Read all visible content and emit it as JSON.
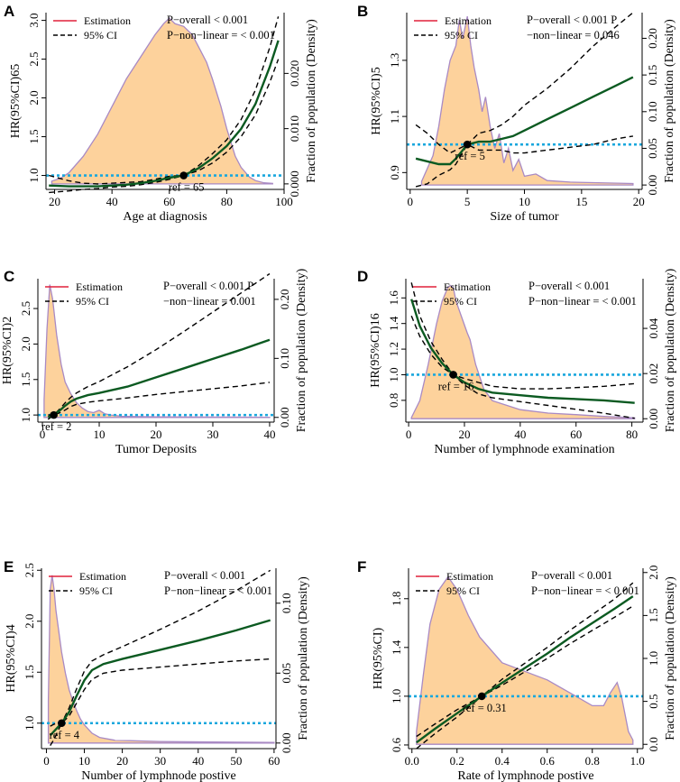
{
  "colors": {
    "density_fill": "#FDD29C",
    "density_stroke": "#A98AC4",
    "estimation_curve": "#0B5A21",
    "estimation_legend": "#E0203A",
    "ci": "#000000",
    "reference": "#1AA7DD",
    "point": "#000000"
  },
  "legend": {
    "estimation": "Estimation",
    "ci": "95% CI"
  },
  "density_axis_label": "Fraction of population (Density)",
  "chart_data": [
    {
      "panel": "A",
      "type": "line",
      "xlabel": "Age at diagnosis",
      "ylabel": "HR(95%CI)65",
      "xlim": [
        17,
        100
      ],
      "xticks": [
        20,
        40,
        60,
        80,
        100
      ],
      "ylim": [
        0.82,
        3.1
      ],
      "yticks": [
        "1.0",
        "1.5",
        "2.0",
        "2.5",
        "3.0"
      ],
      "y2lim": [
        -0.001,
        0.031
      ],
      "y2ticks": [
        "0.000",
        "0.010",
        "0.020"
      ],
      "annot1": "P−overall < 0.001",
      "annot2": "P−non−linear = < 0.001",
      "ref_label": "ref = 65",
      "ref_x": 65,
      "ref_y": 1.0,
      "x": [
        18,
        25,
        30,
        35,
        40,
        45,
        50,
        55,
        60,
        65,
        70,
        75,
        80,
        85,
        90,
        95,
        98
      ],
      "estimate": [
        0.87,
        0.86,
        0.86,
        0.86,
        0.87,
        0.88,
        0.9,
        0.93,
        0.97,
        1.0,
        1.09,
        1.22,
        1.38,
        1.6,
        1.92,
        2.4,
        2.74
      ],
      "ci_lower": [
        0.78,
        0.8,
        0.82,
        0.83,
        0.85,
        0.86,
        0.88,
        0.91,
        0.95,
        1.0,
        1.06,
        1.16,
        1.3,
        1.5,
        1.78,
        2.2,
        2.5
      ],
      "ci_upper": [
        1.0,
        0.93,
        0.9,
        0.89,
        0.9,
        0.91,
        0.92,
        0.95,
        0.99,
        1.0,
        1.12,
        1.28,
        1.46,
        1.72,
        2.1,
        2.65,
        3.05
      ],
      "density_x": [
        19,
        22,
        25,
        30,
        35,
        40,
        45,
        50,
        55,
        58,
        60,
        62,
        65,
        68,
        70,
        73,
        75,
        78,
        80,
        83,
        85,
        88,
        90,
        93,
        96
      ],
      "density": [
        0.0005,
        0.001,
        0.002,
        0.005,
        0.009,
        0.014,
        0.019,
        0.023,
        0.027,
        0.029,
        0.03,
        0.029,
        0.0285,
        0.027,
        0.025,
        0.022,
        0.019,
        0.014,
        0.01,
        0.005,
        0.003,
        0.0012,
        0.0006,
        0.0002,
        0.0001
      ]
    },
    {
      "panel": "B",
      "type": "line",
      "xlabel": "Size of tumor",
      "ylabel": "HR(95%CI)5",
      "xlim": [
        -0.3,
        20.3
      ],
      "xticks": [
        0,
        5,
        10,
        15,
        20
      ],
      "ylim": [
        0.84,
        1.47
      ],
      "yticks": [
        "0.9",
        "1.1",
        "1.3"
      ],
      "y2lim": [
        -0.006,
        0.235
      ],
      "y2ticks": [
        "0.00",
        "0.05",
        "0.10",
        "0.15",
        "0.20"
      ],
      "annot1": "P−overall < 0.001 P",
      "annot2": "−non−linear = 0.046",
      "ref_label": "ref = 5",
      "ref_x": 5,
      "ref_y": 1.0,
      "x": [
        0.5,
        1.5,
        2.5,
        3.5,
        4.0,
        5.0,
        6.0,
        7.0,
        8.0,
        9.0,
        10,
        12,
        14,
        16,
        18,
        19.5
      ],
      "estimate": [
        0.95,
        0.94,
        0.93,
        0.93,
        0.95,
        1.0,
        1.01,
        1.01,
        1.02,
        1.03,
        1.05,
        1.09,
        1.13,
        1.17,
        1.21,
        1.24
      ],
      "ci_lower": [
        0.85,
        0.86,
        0.89,
        0.91,
        0.93,
        1.0,
        0.98,
        0.98,
        0.98,
        0.97,
        0.97,
        0.98,
        0.99,
        1.0,
        1.02,
        1.03
      ],
      "ci_upper": [
        1.07,
        1.04,
        1.0,
        0.97,
        0.98,
        1.0,
        1.04,
        1.05,
        1.07,
        1.1,
        1.14,
        1.2,
        1.27,
        1.35,
        1.42,
        1.47
      ],
      "density_x": [
        1,
        2,
        2.5,
        3,
        3.5,
        4,
        4.3,
        4.6,
        5,
        5.3,
        5.6,
        6,
        6.3,
        6.6,
        7,
        7.4,
        7.8,
        8.2,
        8.6,
        9,
        9.5,
        10,
        11,
        12,
        14,
        19.5
      ],
      "density": [
        0.005,
        0.04,
        0.08,
        0.13,
        0.17,
        0.19,
        0.225,
        0.2,
        0.23,
        0.19,
        0.16,
        0.13,
        0.1,
        0.12,
        0.08,
        0.05,
        0.07,
        0.03,
        0.05,
        0.02,
        0.035,
        0.012,
        0.015,
        0.006,
        0.004,
        0.002
      ]
    },
    {
      "panel": "C",
      "type": "line",
      "xlabel": "Tumor Deposits",
      "ylabel": "HR(95%CI)2",
      "xlim": [
        -0.8,
        40.8
      ],
      "xticks": [
        0,
        10,
        20,
        30,
        40
      ],
      "ylim": [
        0.9,
        2.92
      ],
      "yticks": [
        "1.0",
        "1.5",
        "2.0",
        "2.5"
      ],
      "y2lim": [
        -0.008,
        0.235
      ],
      "y2ticks": [
        "0.00",
        "0.10",
        "0.20"
      ],
      "annot1": "P−overall < 0.001 P",
      "annot2": "−non−linear = 0.001",
      "ref_label": "ref = 2",
      "ref_x": 2,
      "ref_y": 1.0,
      "x": [
        1,
        2,
        3,
        4,
        5,
        6,
        8,
        10,
        15,
        20,
        25,
        30,
        35,
        40
      ],
      "estimate": [
        0.97,
        1.0,
        1.06,
        1.13,
        1.19,
        1.23,
        1.28,
        1.31,
        1.4,
        1.53,
        1.66,
        1.79,
        1.92,
        2.06
      ],
      "ci_lower": [
        0.94,
        1.0,
        1.03,
        1.07,
        1.12,
        1.15,
        1.18,
        1.2,
        1.24,
        1.29,
        1.33,
        1.37,
        1.41,
        1.46
      ],
      "ci_upper": [
        1.0,
        1.0,
        1.08,
        1.17,
        1.25,
        1.31,
        1.4,
        1.47,
        1.68,
        1.92,
        2.18,
        2.45,
        2.72,
        2.99
      ],
      "density_x": [
        0.3,
        0.8,
        1.3,
        1.8,
        2.5,
        3.3,
        4,
        5,
        6,
        7,
        8,
        9,
        10,
        11,
        12,
        14,
        20,
        30,
        40
      ],
      "density": [
        0.03,
        0.15,
        0.225,
        0.2,
        0.14,
        0.09,
        0.06,
        0.04,
        0.025,
        0.016,
        0.01,
        0.008,
        0.012,
        0.006,
        0.004,
        0.002,
        0.001,
        0.0006,
        0.0003
      ]
    },
    {
      "panel": "D",
      "type": "line",
      "xlabel": "Number of lymphnode examination",
      "ylabel": "HR(95%CI)16",
      "xlim": [
        -1,
        84
      ],
      "xticks": [
        0,
        20,
        40,
        60,
        80
      ],
      "ylim": [
        0.63,
        1.75
      ],
      "yticks": [
        "0.8",
        "1.0",
        "1.2",
        "1.4",
        "1.6"
      ],
      "y2lim": [
        -0.0015,
        0.062
      ],
      "y2ticks": [
        "0.00",
        "0.02",
        "0.04"
      ],
      "annot1": "P−overall < 0.001",
      "annot2": "P−non−linear = < 0.001",
      "ref_label": "ref = 16",
      "ref_x": 16,
      "ref_y": 1.0,
      "x": [
        1,
        4,
        8,
        12,
        16,
        20,
        25,
        30,
        40,
        50,
        60,
        70,
        81
      ],
      "estimate": [
        1.59,
        1.38,
        1.21,
        1.09,
        1.0,
        0.94,
        0.89,
        0.86,
        0.84,
        0.82,
        0.81,
        0.8,
        0.78
      ],
      "ci_lower": [
        1.46,
        1.3,
        1.16,
        1.06,
        1.0,
        0.92,
        0.85,
        0.82,
        0.79,
        0.76,
        0.73,
        0.7,
        0.66
      ],
      "ci_upper": [
        1.72,
        1.46,
        1.26,
        1.12,
        1.0,
        0.97,
        0.94,
        0.91,
        0.89,
        0.89,
        0.9,
        0.91,
        0.93
      ],
      "density_x": [
        1,
        4,
        7,
        10,
        12,
        14,
        15,
        16,
        17,
        19,
        21,
        22,
        24,
        27,
        30,
        35,
        40,
        50,
        60,
        70,
        81
      ],
      "density": [
        0.0005,
        0.008,
        0.024,
        0.042,
        0.052,
        0.058,
        0.059,
        0.058,
        0.052,
        0.045,
        0.038,
        0.035,
        0.024,
        0.013,
        0.008,
        0.006,
        0.004,
        0.0025,
        0.0018,
        0.001,
        0.0004
      ]
    },
    {
      "panel": "E",
      "type": "line",
      "xlabel": "Number of lymphnode postive",
      "ylabel": "HR(95%CI)4",
      "xlim": [
        -1.3,
        60.5
      ],
      "xticks": [
        0,
        10,
        20,
        30,
        40,
        50,
        60
      ],
      "ylim": [
        0.75,
        2.52
      ],
      "yticks": [
        "1.0",
        "1.5",
        "2.0",
        "2.5"
      ],
      "y2lim": [
        -0.004,
        0.125
      ],
      "y2ticks": [
        "0.00",
        "0.05",
        "0.10"
      ],
      "annot1": "P−overall < 0.001",
      "annot2": "P−non−linear = < 0.001",
      "ref_label": "ref = 4",
      "ref_x": 4,
      "ref_y": 1.0,
      "x": [
        1,
        2,
        3,
        4,
        6,
        8,
        10,
        12,
        15,
        20,
        30,
        40,
        50,
        59
      ],
      "estimate": [
        0.88,
        0.92,
        0.96,
        1.0,
        1.11,
        1.27,
        1.42,
        1.52,
        1.58,
        1.63,
        1.72,
        1.81,
        1.91,
        2.01
      ],
      "ci_lower": [
        0.78,
        0.84,
        0.92,
        1.0,
        1.07,
        1.2,
        1.33,
        1.43,
        1.49,
        1.52,
        1.55,
        1.58,
        1.61,
        1.63
      ],
      "ci_upper": [
        0.97,
        0.99,
        1.0,
        1.0,
        1.15,
        1.34,
        1.51,
        1.61,
        1.67,
        1.75,
        1.92,
        2.1,
        2.3,
        2.5
      ],
      "density_x": [
        0.5,
        1,
        1.5,
        2,
        2.5,
        3,
        4,
        5,
        6,
        7,
        8,
        9,
        10,
        12,
        14,
        18,
        30,
        60
      ],
      "density": [
        0.03,
        0.11,
        0.12,
        0.11,
        0.095,
        0.085,
        0.065,
        0.05,
        0.038,
        0.03,
        0.023,
        0.017,
        0.013,
        0.007,
        0.004,
        0.002,
        0.001,
        0.0004
      ]
    },
    {
      "panel": "F",
      "type": "line",
      "xlabel": "Rate of lymphnode postive",
      "ylabel": "HR(95%CI)",
      "xlim": [
        -0.015,
        1.025
      ],
      "xticks": [
        "0.0",
        "0.2",
        "0.4",
        "0.6",
        "0.8",
        "1.0"
      ],
      "ylim": [
        0.57,
        2.05
      ],
      "yticks": [
        "0.6",
        "1.0",
        "1.4",
        "1.8"
      ],
      "y2lim": [
        -0.05,
        2.05
      ],
      "y2ticks": [
        "0.0",
        "0.5",
        "1.0",
        "1.5",
        "2.0"
      ],
      "annot1": "P−overall < 0.001",
      "annot2": "P−non−linear = < 0.001",
      "ref_label": "ref = 0.31",
      "ref_x": 0.31,
      "ref_y": 1.0,
      "x": [
        0.02,
        0.1,
        0.2,
        0.31,
        0.4,
        0.5,
        0.6,
        0.7,
        0.8,
        0.9,
        0.98
      ],
      "estimate": [
        0.62,
        0.73,
        0.86,
        1.0,
        1.11,
        1.23,
        1.35,
        1.48,
        1.6,
        1.72,
        1.82
      ],
      "ci_lower": [
        0.57,
        0.69,
        0.83,
        1.0,
        1.09,
        1.2,
        1.31,
        1.43,
        1.54,
        1.65,
        1.74
      ],
      "ci_upper": [
        0.67,
        0.77,
        0.89,
        1.0,
        1.14,
        1.27,
        1.4,
        1.54,
        1.67,
        1.8,
        1.93
      ],
      "density_x": [
        0.02,
        0.05,
        0.08,
        0.12,
        0.16,
        0.2,
        0.25,
        0.3,
        0.4,
        0.5,
        0.6,
        0.7,
        0.8,
        0.85,
        0.88,
        0.91,
        0.93,
        0.96,
        0.98
      ],
      "density": [
        0.15,
        0.8,
        1.4,
        1.8,
        1.95,
        1.8,
        1.5,
        1.25,
        0.95,
        0.85,
        0.75,
        0.6,
        0.45,
        0.45,
        0.6,
        0.72,
        0.55,
        0.15,
        0.05
      ]
    }
  ]
}
